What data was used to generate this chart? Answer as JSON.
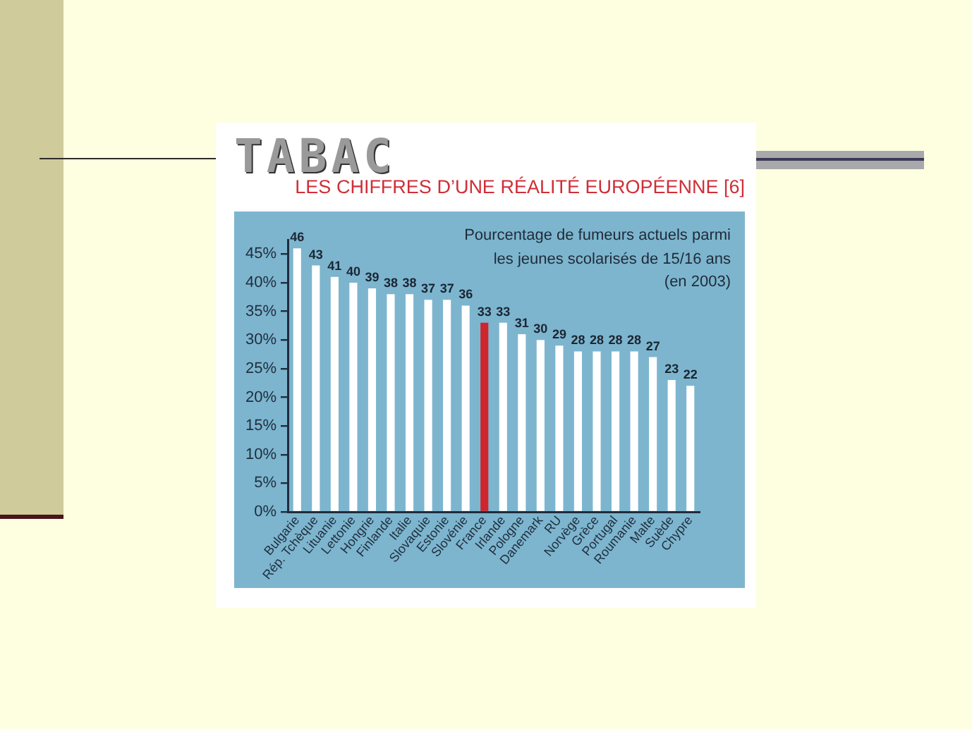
{
  "chart_data": {
    "type": "bar",
    "title": "TABAC",
    "subtitle": "LES CHIFFRES D’UNE RÉALITÉ EUROPÉENNE [6]",
    "annotations": [
      "Pourcentage de fumeurs actuels parmi\nles jeunes scolarisés de 15/16 ans\n(en 2003)"
    ],
    "categories": [
      "Bulgarie",
      "Rép. Tchèque",
      "Lituanie",
      "Lettonie",
      "Hongrie",
      "Finlande",
      "Italie",
      "Slovaquie",
      "Estonie",
      "Slovénie",
      "France",
      "Irlande",
      "Pologne",
      "Danemark",
      "RU",
      "Norvège",
      "Grèce",
      "Portugal",
      "Roumanie",
      "Malte",
      "Suède",
      "Chypre"
    ],
    "values": [
      46,
      43,
      41,
      40,
      39,
      38,
      38,
      37,
      37,
      36,
      33,
      33,
      31,
      30,
      29,
      28,
      28,
      28,
      28,
      27,
      23,
      22
    ],
    "colors": [
      "#ffffff",
      "#ffffff",
      "#ffffff",
      "#ffffff",
      "#ffffff",
      "#ffffff",
      "#ffffff",
      "#ffffff",
      "#ffffff",
      "#ffffff",
      "#d1252d",
      "#ffffff",
      "#ffffff",
      "#ffffff",
      "#ffffff",
      "#ffffff",
      "#ffffff",
      "#ffffff",
      "#ffffff",
      "#ffffff",
      "#ffffff",
      "#ffffff"
    ],
    "ylim": [
      0,
      47.5
    ],
    "yticks": [
      {
        "value": 0,
        "label": "0%"
      },
      {
        "value": 5,
        "label": "5%"
      },
      {
        "value": 10,
        "label": "10%"
      },
      {
        "value": 15,
        "label": "15%"
      },
      {
        "value": 20,
        "label": "20%"
      },
      {
        "value": 25,
        "label": "25%"
      },
      {
        "value": 30,
        "label": "30%"
      },
      {
        "value": 35,
        "label": "35%"
      },
      {
        "value": 40,
        "label": "40%"
      },
      {
        "value": 45,
        "label": "45%"
      }
    ],
    "data_labels": true,
    "grid": false,
    "legend": false
  }
}
